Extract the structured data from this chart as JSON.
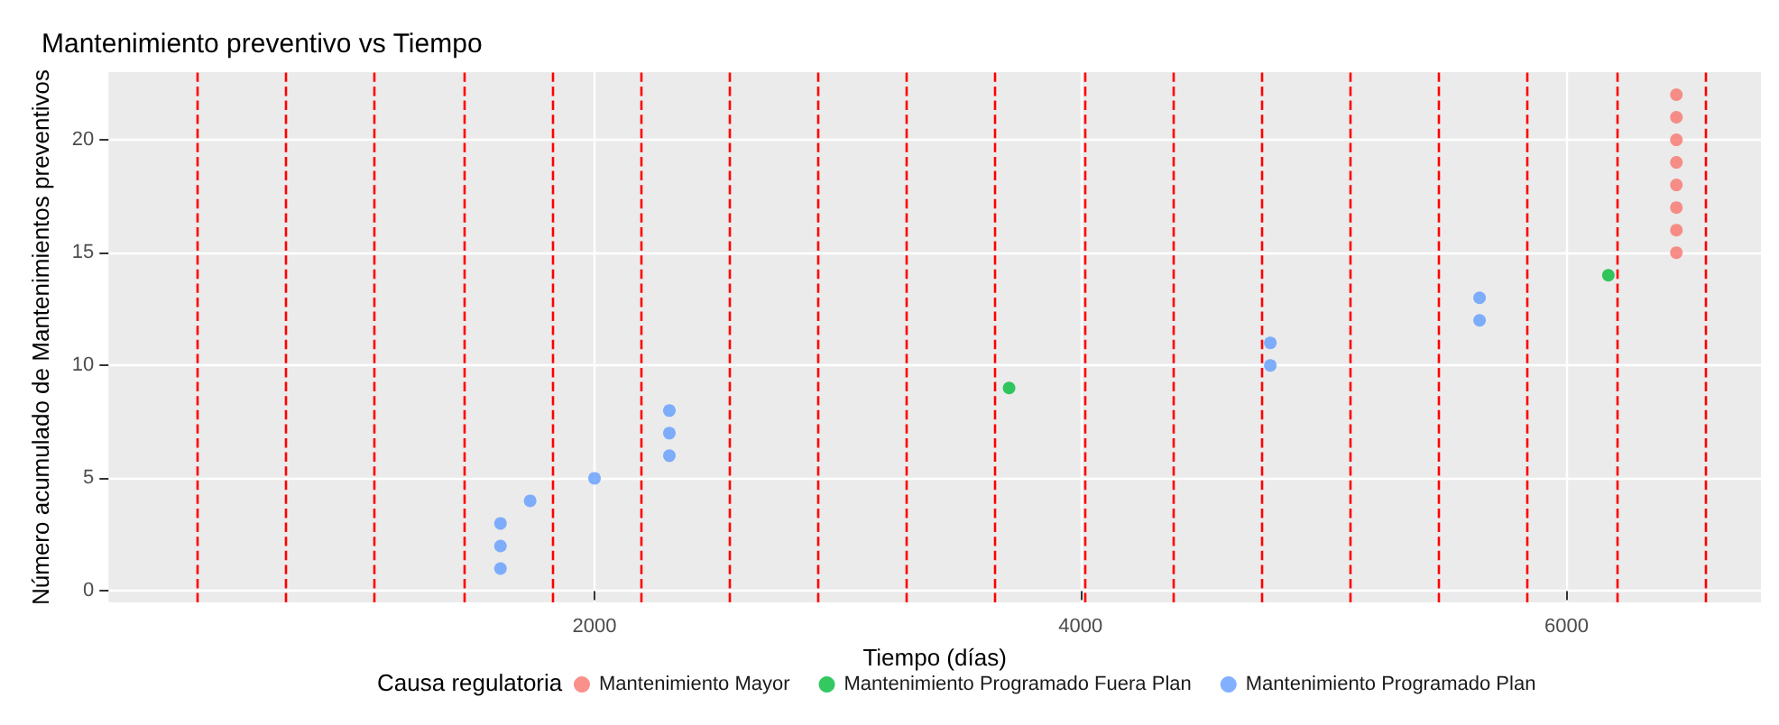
{
  "chart_data": {
    "type": "scatter",
    "title": "Mantenimiento preventivo vs Tiempo",
    "xlabel": "Tiempo (días)",
    "ylabel": "Número acumulado de Mantenimientos preventivos",
    "legend_title": "Causa regulatoria",
    "legend": "bottom",
    "grid": true,
    "marker": "circle",
    "xlim": [
      0,
      6800
    ],
    "xticks": [
      2000,
      4000,
      6000
    ],
    "ylim": [
      -0.5,
      23
    ],
    "yticks": [
      0,
      5,
      10,
      15,
      20
    ],
    "series": [
      {
        "name": "Mantenimiento Mayor",
        "color": "#f8766d",
        "x": [
          6452,
          6452,
          6452,
          6452,
          6452,
          6452,
          6452,
          6452
        ],
        "values": [
          15,
          16,
          17,
          18,
          19,
          20,
          21,
          22
        ]
      },
      {
        "name": "Mantenimiento Programado Fuera Plan",
        "color": "#00ba38",
        "x": [
          3706,
          6172
        ],
        "values": [
          9,
          14
        ]
      },
      {
        "name": "Mantenimiento Programado Plan",
        "color": "#619cff",
        "x": [
          1613,
          1613,
          1613,
          1735,
          2000,
          2308,
          2308,
          2308,
          4781,
          4781,
          5642,
          5642
        ],
        "values": [
          1,
          2,
          3,
          4,
          5,
          6,
          7,
          8,
          10,
          11,
          12,
          13
        ]
      }
    ],
    "ref_lines": [
      {
        "axis": "x",
        "value": 365,
        "color": "#ff0000",
        "line_style": "dashed"
      },
      {
        "axis": "x",
        "value": 730,
        "color": "#ff0000",
        "line_style": "dashed"
      },
      {
        "axis": "x",
        "value": 1095,
        "color": "#ff0000",
        "line_style": "dashed"
      },
      {
        "axis": "x",
        "value": 1460,
        "color": "#ff0000",
        "line_style": "dashed"
      },
      {
        "axis": "x",
        "value": 1825,
        "color": "#ff0000",
        "line_style": "dashed"
      },
      {
        "axis": "x",
        "value": 2190,
        "color": "#ff0000",
        "line_style": "dashed"
      },
      {
        "axis": "x",
        "value": 2555,
        "color": "#ff0000",
        "line_style": "dashed"
      },
      {
        "axis": "x",
        "value": 2920,
        "color": "#ff0000",
        "line_style": "dashed"
      },
      {
        "axis": "x",
        "value": 3285,
        "color": "#ff0000",
        "line_style": "dashed"
      },
      {
        "axis": "x",
        "value": 3650,
        "color": "#ff0000",
        "line_style": "dashed"
      },
      {
        "axis": "x",
        "value": 4015,
        "color": "#ff0000",
        "line_style": "dashed"
      },
      {
        "axis": "x",
        "value": 4380,
        "color": "#ff0000",
        "line_style": "dashed"
      },
      {
        "axis": "x",
        "value": 4745,
        "color": "#ff0000",
        "line_style": "dashed"
      },
      {
        "axis": "x",
        "value": 5110,
        "color": "#ff0000",
        "line_style": "dashed"
      },
      {
        "axis": "x",
        "value": 5475,
        "color": "#ff0000",
        "line_style": "dashed"
      },
      {
        "axis": "x",
        "value": 5840,
        "color": "#ff0000",
        "line_style": "dashed"
      },
      {
        "axis": "x",
        "value": 6205,
        "color": "#ff0000",
        "line_style": "dashed"
      },
      {
        "axis": "x",
        "value": 6570,
        "color": "#ff0000",
        "line_style": "dashed"
      }
    ]
  }
}
